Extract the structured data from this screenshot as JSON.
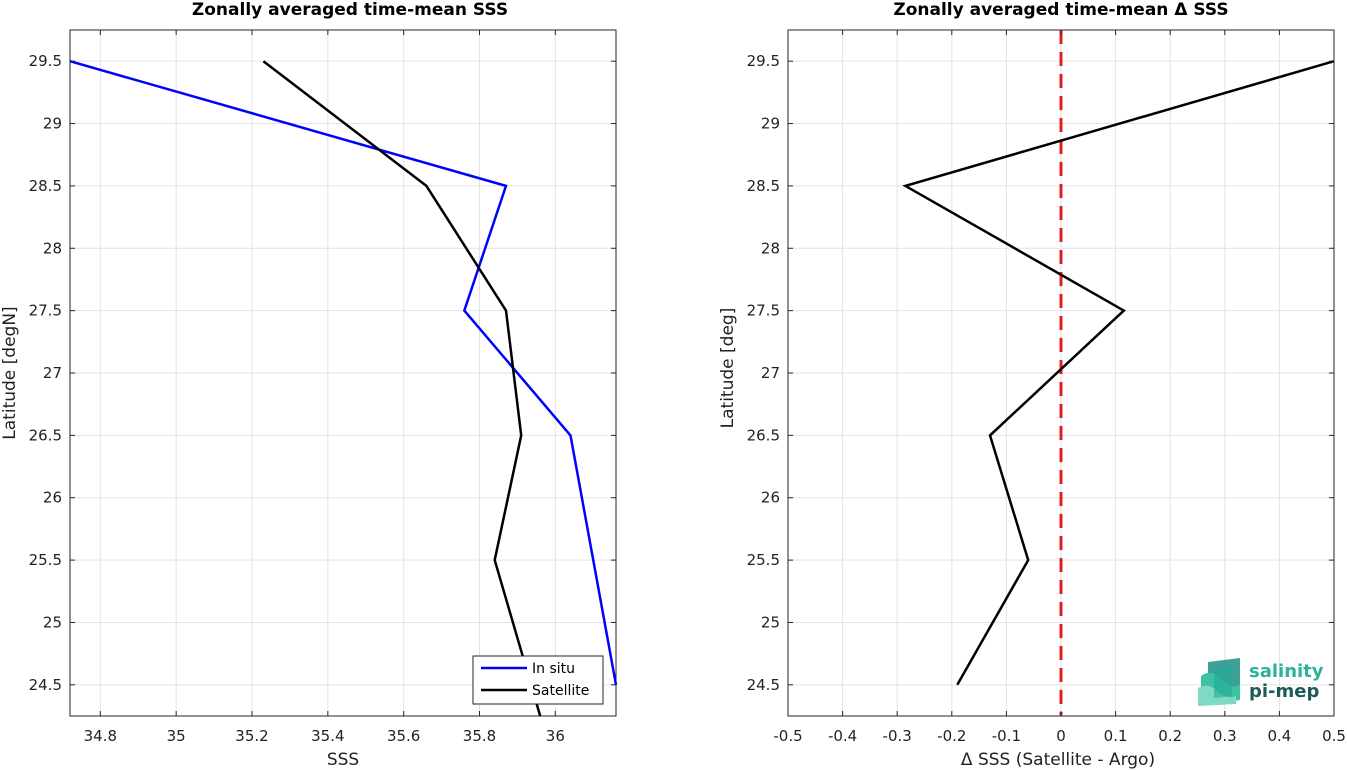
{
  "chart_data": [
    {
      "type": "line",
      "title": "Zonally averaged time-mean SSS",
      "xlabel": "SSS",
      "ylabel": "Latitude [degN]",
      "xlim": [
        34.72,
        36.16
      ],
      "ylim": [
        24.25,
        29.75
      ],
      "xticks": [
        "34.8",
        "35",
        "35.2",
        "35.4",
        "35.6",
        "35.8",
        "36"
      ],
      "xtick_values": [
        34.8,
        35.0,
        35.2,
        35.4,
        35.6,
        35.8,
        36.0
      ],
      "yticks": [
        "24.5",
        "25",
        "25.5",
        "26",
        "26.5",
        "27",
        "27.5",
        "28",
        "28.5",
        "29",
        "29.5"
      ],
      "ytick_values": [
        24.5,
        25,
        25.5,
        26,
        26.5,
        27,
        27.5,
        28,
        28.5,
        29,
        29.5
      ],
      "grid": true,
      "legend_position": "bottom-right",
      "series": [
        {
          "name": "In situ",
          "color": "#0000ff",
          "points": [
            [
              36.16,
              24.5
            ],
            [
              36.04,
              26.5
            ],
            [
              35.76,
              27.5
            ],
            [
              35.87,
              28.5
            ],
            [
              34.72,
              29.5
            ]
          ]
        },
        {
          "name": "Satellite",
          "color": "#000000",
          "points": [
            [
              35.96,
              24.25
            ],
            [
              35.84,
              25.5
            ],
            [
              35.91,
              26.5
            ],
            [
              35.87,
              27.5
            ],
            [
              35.66,
              28.5
            ],
            [
              35.23,
              29.5
            ]
          ]
        }
      ]
    },
    {
      "type": "line",
      "title": "Zonally averaged time-mean Δ SSS",
      "xlabel": "Δ SSS (Satellite - Argo)",
      "ylabel": "Latitude [deg]",
      "xlim": [
        -0.5,
        0.5
      ],
      "ylim": [
        24.25,
        29.75
      ],
      "xticks": [
        "-0.5",
        "-0.4",
        "-0.3",
        "-0.2",
        "-0.1",
        "0",
        "0.1",
        "0.2",
        "0.3",
        "0.4",
        "0.5"
      ],
      "xtick_values": [
        -0.5,
        -0.4,
        -0.3,
        -0.2,
        -0.1,
        0,
        0.1,
        0.2,
        0.3,
        0.4,
        0.5
      ],
      "yticks": [
        "24.5",
        "25",
        "25.5",
        "26",
        "26.5",
        "27",
        "27.5",
        "28",
        "28.5",
        "29",
        "29.5"
      ],
      "ytick_values": [
        24.5,
        25,
        25.5,
        26,
        26.5,
        27,
        27.5,
        28,
        28.5,
        29,
        29.5
      ],
      "grid": true,
      "reference_line": {
        "x": 0,
        "color": "#e02020",
        "style": "dashed"
      },
      "series": [
        {
          "color": "#000000",
          "points": [
            [
              -0.19,
              24.5
            ],
            [
              -0.06,
              25.5
            ],
            [
              -0.13,
              26.5
            ],
            [
              0.115,
              27.5
            ],
            [
              -0.285,
              28.5
            ],
            [
              0.5,
              29.5
            ]
          ]
        }
      ]
    }
  ],
  "logo": {
    "line1": "salinity",
    "line2": "pi-mep",
    "color1": "#2bb39a",
    "color2": "#1d5a5a"
  }
}
